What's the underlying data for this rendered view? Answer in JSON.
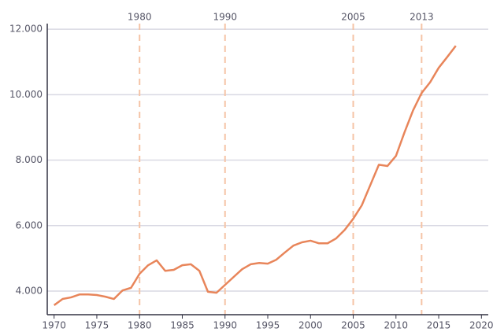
{
  "chart_data": {
    "type": "line",
    "x": [
      1970,
      1971,
      1972,
      1973,
      1974,
      1975,
      1976,
      1977,
      1978,
      1979,
      1980,
      1981,
      1982,
      1983,
      1984,
      1985,
      1986,
      1987,
      1988,
      1989,
      1990,
      1991,
      1992,
      1993,
      1994,
      1995,
      1996,
      1997,
      1998,
      1999,
      2000,
      2001,
      2002,
      2003,
      2004,
      2005,
      2006,
      2007,
      2008,
      2009,
      2010,
      2011,
      2012,
      2013,
      2014,
      2015,
      2016,
      2017
    ],
    "values": [
      3570,
      3760,
      3810,
      3900,
      3900,
      3880,
      3830,
      3760,
      4020,
      4100,
      4530,
      4790,
      4940,
      4620,
      4650,
      4790,
      4820,
      4620,
      3980,
      3950,
      4190,
      4430,
      4670,
      4820,
      4860,
      4840,
      4960,
      5180,
      5390,
      5490,
      5540,
      5460,
      5460,
      5610,
      5870,
      6210,
      6620,
      7240,
      7860,
      7820,
      8130,
      8850,
      9520,
      10050,
      10380,
      10820,
      11150,
      11490
    ],
    "color": "#e8855a",
    "xlim": [
      1969.2,
      2020.8
    ],
    "xticks": [
      1970,
      1975,
      1980,
      1985,
      1990,
      1995,
      2000,
      2005,
      2010,
      2015,
      2020
    ],
    "ylim": [
      3280,
      12170
    ],
    "yticks": [
      {
        "value": 4000,
        "label": "4.000"
      },
      {
        "value": 6000,
        "label": "6.000"
      },
      {
        "value": 8000,
        "label": "8.000"
      },
      {
        "value": 10000,
        "label": "10.000"
      },
      {
        "value": 12000,
        "label": "12.000"
      }
    ],
    "grid": true,
    "vlines": [
      1980,
      1990,
      2005,
      2013
    ],
    "vline_color": "#f5c4a6"
  }
}
